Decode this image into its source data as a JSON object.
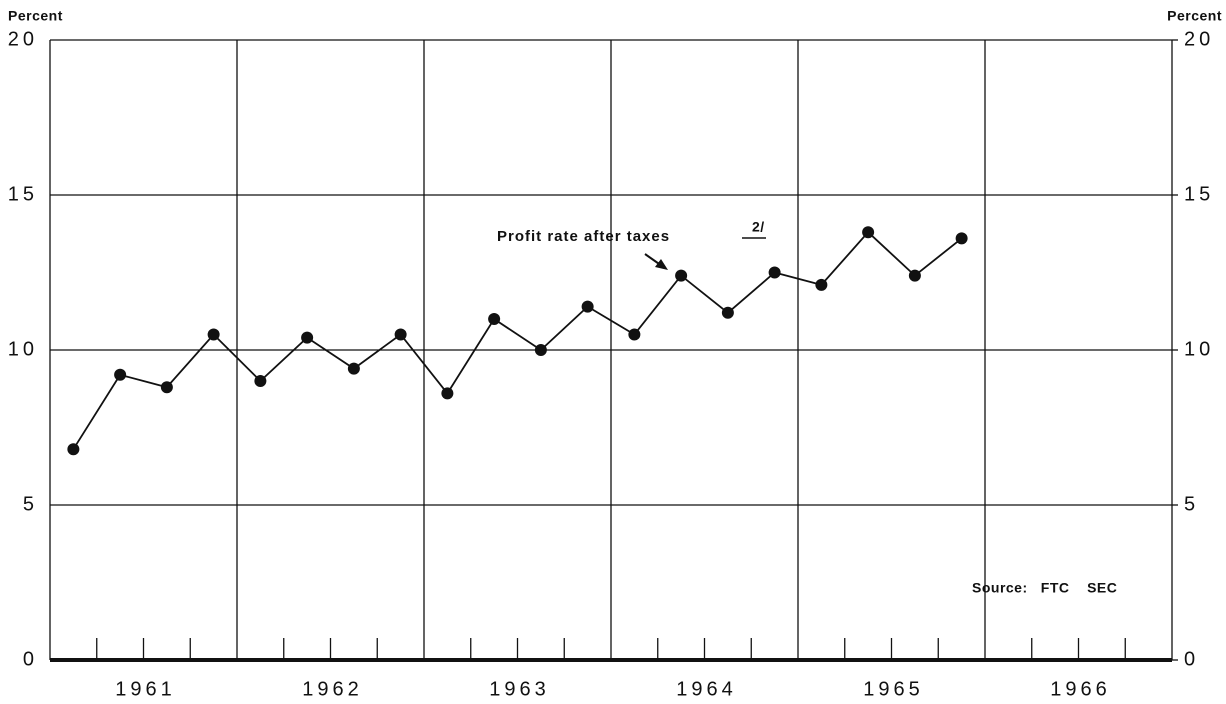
{
  "chart_data": {
    "type": "line",
    "y_label": "Percent",
    "y2_label": "Percent",
    "annotation": "Profit rate after taxes",
    "footnote_mark": "2/",
    "source": "Source:   FTC    SEC",
    "xlim": [
      1961,
      1967
    ],
    "xticks": [
      {
        "value": 1961.5,
        "label": "1961"
      },
      {
        "value": 1962.5,
        "label": "1962"
      },
      {
        "value": 1963.5,
        "label": "1963"
      },
      {
        "value": 1964.5,
        "label": "1964"
      },
      {
        "value": 1965.5,
        "label": "1965"
      },
      {
        "value": 1966.5,
        "label": "1966"
      }
    ],
    "ylim": [
      0,
      20
    ],
    "yticks": [
      0,
      5,
      10,
      15,
      20
    ],
    "y2lim": [
      0,
      20
    ],
    "y2ticks": [
      0,
      5,
      10,
      15,
      20
    ],
    "grid": true,
    "x": [
      1961.125,
      1961.375,
      1961.625,
      1961.875,
      1962.125,
      1962.375,
      1962.625,
      1962.875,
      1963.125,
      1963.375,
      1963.625,
      1963.875,
      1964.125,
      1964.375,
      1964.625,
      1964.875,
      1965.125,
      1965.375,
      1965.625,
      1965.875
    ],
    "series": [
      {
        "name": "Profit rate after taxes",
        "color": "#111111",
        "values": [
          6.8,
          9.2,
          8.8,
          10.5,
          9.0,
          10.4,
          9.4,
          10.5,
          8.6,
          11.0,
          10.0,
          11.4,
          10.5,
          12.4,
          11.2,
          12.5,
          12.1,
          13.8,
          12.4,
          13.6
        ]
      }
    ]
  }
}
